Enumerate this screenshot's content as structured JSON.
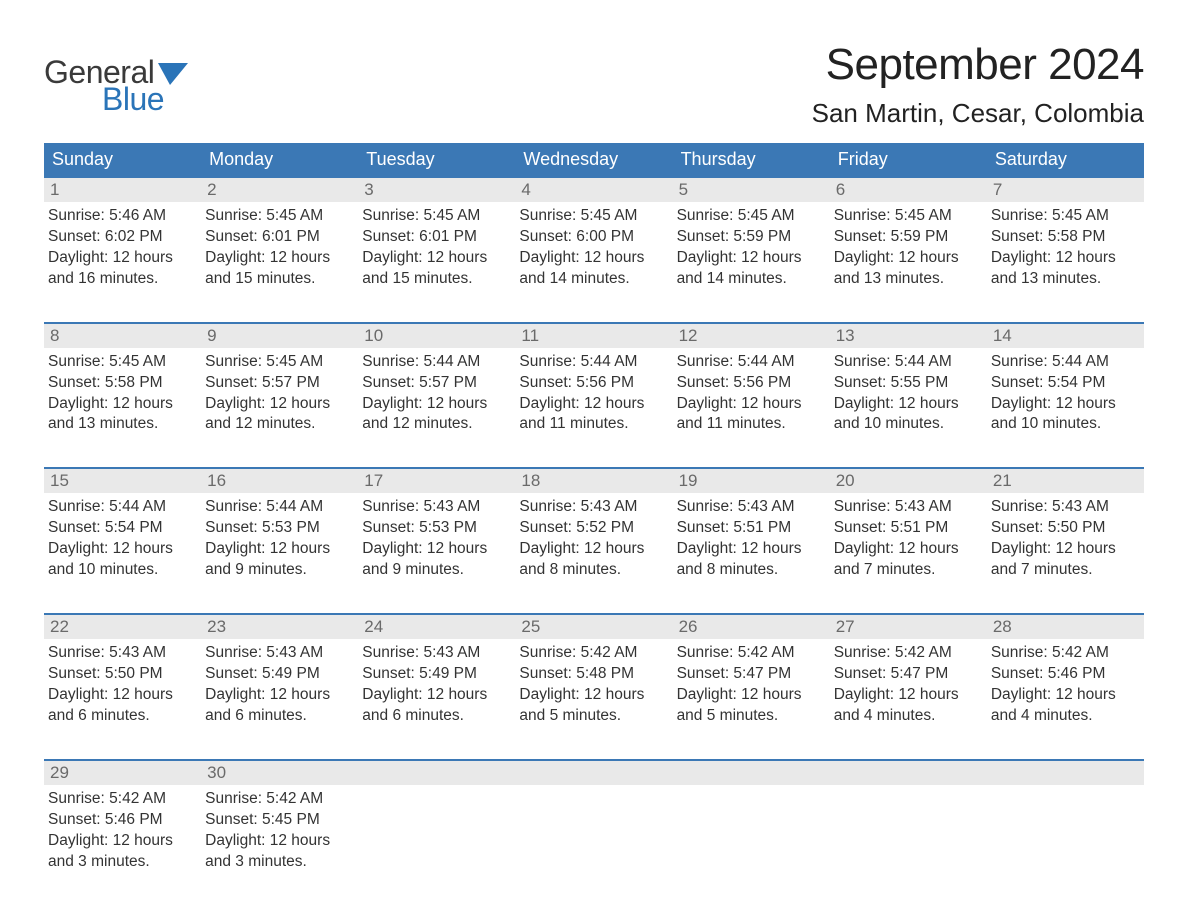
{
  "brand": {
    "word1": "General",
    "word2": "Blue",
    "flag_color": "#2a74b8",
    "text_color": "#3a3a3a"
  },
  "title": "September 2024",
  "location": "San Martin, Cesar, Colombia",
  "colors": {
    "header_bg": "#3b78b5",
    "header_text": "#ffffff",
    "daynum_bg": "#e9e9e9",
    "daynum_text": "#6a6a6a",
    "body_text": "#333333",
    "week_top_border": "#3b78b5",
    "page_bg": "#ffffff"
  },
  "days_of_week": [
    "Sunday",
    "Monday",
    "Tuesday",
    "Wednesday",
    "Thursday",
    "Friday",
    "Saturday"
  ],
  "labels": {
    "sunrise": "Sunrise:",
    "sunset": "Sunset:",
    "daylight": "Daylight:"
  },
  "weeks": [
    [
      {
        "n": "1",
        "sunrise": "5:46 AM",
        "sunset": "6:02 PM",
        "daylight1": "12 hours",
        "daylight2": "and 16 minutes."
      },
      {
        "n": "2",
        "sunrise": "5:45 AM",
        "sunset": "6:01 PM",
        "daylight1": "12 hours",
        "daylight2": "and 15 minutes."
      },
      {
        "n": "3",
        "sunrise": "5:45 AM",
        "sunset": "6:01 PM",
        "daylight1": "12 hours",
        "daylight2": "and 15 minutes."
      },
      {
        "n": "4",
        "sunrise": "5:45 AM",
        "sunset": "6:00 PM",
        "daylight1": "12 hours",
        "daylight2": "and 14 minutes."
      },
      {
        "n": "5",
        "sunrise": "5:45 AM",
        "sunset": "5:59 PM",
        "daylight1": "12 hours",
        "daylight2": "and 14 minutes."
      },
      {
        "n": "6",
        "sunrise": "5:45 AM",
        "sunset": "5:59 PM",
        "daylight1": "12 hours",
        "daylight2": "and 13 minutes."
      },
      {
        "n": "7",
        "sunrise": "5:45 AM",
        "sunset": "5:58 PM",
        "daylight1": "12 hours",
        "daylight2": "and 13 minutes."
      }
    ],
    [
      {
        "n": "8",
        "sunrise": "5:45 AM",
        "sunset": "5:58 PM",
        "daylight1": "12 hours",
        "daylight2": "and 13 minutes."
      },
      {
        "n": "9",
        "sunrise": "5:45 AM",
        "sunset": "5:57 PM",
        "daylight1": "12 hours",
        "daylight2": "and 12 minutes."
      },
      {
        "n": "10",
        "sunrise": "5:44 AM",
        "sunset": "5:57 PM",
        "daylight1": "12 hours",
        "daylight2": "and 12 minutes."
      },
      {
        "n": "11",
        "sunrise": "5:44 AM",
        "sunset": "5:56 PM",
        "daylight1": "12 hours",
        "daylight2": "and 11 minutes."
      },
      {
        "n": "12",
        "sunrise": "5:44 AM",
        "sunset": "5:56 PM",
        "daylight1": "12 hours",
        "daylight2": "and 11 minutes."
      },
      {
        "n": "13",
        "sunrise": "5:44 AM",
        "sunset": "5:55 PM",
        "daylight1": "12 hours",
        "daylight2": "and 10 minutes."
      },
      {
        "n": "14",
        "sunrise": "5:44 AM",
        "sunset": "5:54 PM",
        "daylight1": "12 hours",
        "daylight2": "and 10 minutes."
      }
    ],
    [
      {
        "n": "15",
        "sunrise": "5:44 AM",
        "sunset": "5:54 PM",
        "daylight1": "12 hours",
        "daylight2": "and 10 minutes."
      },
      {
        "n": "16",
        "sunrise": "5:44 AM",
        "sunset": "5:53 PM",
        "daylight1": "12 hours",
        "daylight2": "and 9 minutes."
      },
      {
        "n": "17",
        "sunrise": "5:43 AM",
        "sunset": "5:53 PM",
        "daylight1": "12 hours",
        "daylight2": "and 9 minutes."
      },
      {
        "n": "18",
        "sunrise": "5:43 AM",
        "sunset": "5:52 PM",
        "daylight1": "12 hours",
        "daylight2": "and 8 minutes."
      },
      {
        "n": "19",
        "sunrise": "5:43 AM",
        "sunset": "5:51 PM",
        "daylight1": "12 hours",
        "daylight2": "and 8 minutes."
      },
      {
        "n": "20",
        "sunrise": "5:43 AM",
        "sunset": "5:51 PM",
        "daylight1": "12 hours",
        "daylight2": "and 7 minutes."
      },
      {
        "n": "21",
        "sunrise": "5:43 AM",
        "sunset": "5:50 PM",
        "daylight1": "12 hours",
        "daylight2": "and 7 minutes."
      }
    ],
    [
      {
        "n": "22",
        "sunrise": "5:43 AM",
        "sunset": "5:50 PM",
        "daylight1": "12 hours",
        "daylight2": "and 6 minutes."
      },
      {
        "n": "23",
        "sunrise": "5:43 AM",
        "sunset": "5:49 PM",
        "daylight1": "12 hours",
        "daylight2": "and 6 minutes."
      },
      {
        "n": "24",
        "sunrise": "5:43 AM",
        "sunset": "5:49 PM",
        "daylight1": "12 hours",
        "daylight2": "and 6 minutes."
      },
      {
        "n": "25",
        "sunrise": "5:42 AM",
        "sunset": "5:48 PM",
        "daylight1": "12 hours",
        "daylight2": "and 5 minutes."
      },
      {
        "n": "26",
        "sunrise": "5:42 AM",
        "sunset": "5:47 PM",
        "daylight1": "12 hours",
        "daylight2": "and 5 minutes."
      },
      {
        "n": "27",
        "sunrise": "5:42 AM",
        "sunset": "5:47 PM",
        "daylight1": "12 hours",
        "daylight2": "and 4 minutes."
      },
      {
        "n": "28",
        "sunrise": "5:42 AM",
        "sunset": "5:46 PM",
        "daylight1": "12 hours",
        "daylight2": "and 4 minutes."
      }
    ],
    [
      {
        "n": "29",
        "sunrise": "5:42 AM",
        "sunset": "5:46 PM",
        "daylight1": "12 hours",
        "daylight2": "and 3 minutes."
      },
      {
        "n": "30",
        "sunrise": "5:42 AM",
        "sunset": "5:45 PM",
        "daylight1": "12 hours",
        "daylight2": "and 3 minutes."
      },
      {
        "empty": true
      },
      {
        "empty": true
      },
      {
        "empty": true
      },
      {
        "empty": true
      },
      {
        "empty": true
      }
    ]
  ]
}
